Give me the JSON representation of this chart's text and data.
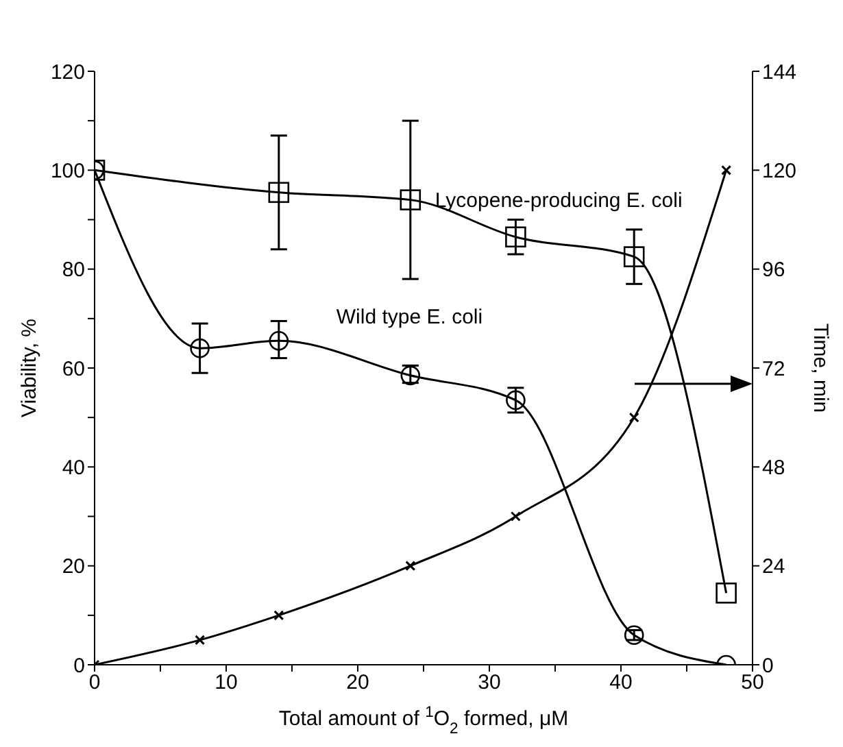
{
  "chart_data": {
    "type": "line",
    "xlabel": "Total amount of $^{1}$O$_{2}$ formed, μM",
    "ylabel": "Viability, %",
    "y2label": "Time, min",
    "xlim": [
      0,
      50
    ],
    "xticks": [
      0,
      {
        "value": 5,
        "label": null
      },
      10,
      {
        "value": 15,
        "label": null
      },
      20,
      {
        "value": 25,
        "label": null
      },
      30,
      {
        "value": 35,
        "label": null
      },
      40,
      {
        "value": 45,
        "label": null
      },
      50
    ],
    "ylim": [
      0,
      120
    ],
    "yticks": [
      0,
      {
        "value": 10,
        "label": null
      },
      20,
      {
        "value": 30,
        "label": null
      },
      40,
      {
        "value": 50,
        "label": null
      },
      60,
      {
        "value": 70,
        "label": null
      },
      80,
      {
        "value": 90,
        "label": null
      },
      100,
      {
        "value": 110,
        "label": null
      },
      120
    ],
    "y2lim": [
      0,
      144
    ],
    "y2ticks": [
      0,
      24,
      48,
      72,
      96,
      120,
      144
    ],
    "grid": false,
    "line_style": "solid",
    "series": [
      {
        "name": "Wild type E. coli",
        "color": "#000000",
        "marker": "circle",
        "x": [
          0,
          8,
          14,
          24,
          32,
          41,
          48
        ],
        "values": [
          100,
          64,
          65.5,
          58.5,
          53.5,
          6,
          0
        ],
        "errors": [
          null,
          [
            59,
            69
          ],
          [
            62,
            69.5
          ],
          [
            57,
            60.5
          ],
          [
            51,
            56
          ],
          [
            5,
            7
          ],
          null
        ]
      },
      {
        "name": "Lycopene-producing E. coli",
        "color": "#000000",
        "marker": "square",
        "x": [
          0,
          14,
          24,
          32,
          41,
          48
        ],
        "values": [
          100,
          95.5,
          94,
          86.5,
          82.5,
          14.5
        ],
        "errors": [
          null,
          [
            84,
            107
          ],
          [
            78,
            110
          ],
          [
            83,
            90
          ],
          [
            77,
            88
          ],
          null
        ]
      },
      {
        "color": "#000000",
        "marker": "cross",
        "axis": "y2",
        "x": [
          0,
          8,
          14,
          24,
          32,
          41,
          48
        ],
        "values": [
          0,
          6,
          12,
          24,
          36,
          60,
          120
        ]
      }
    ]
  }
}
